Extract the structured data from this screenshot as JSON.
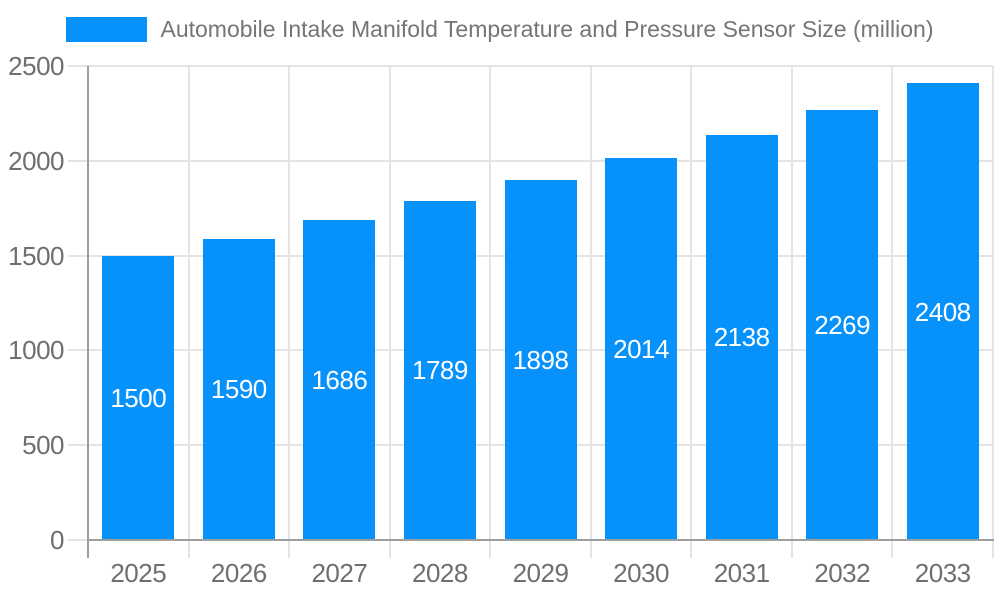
{
  "chart_data": {
    "type": "bar",
    "title": "Automobile Intake Manifold Temperature and Pressure Sensor Size (million)",
    "legend_position": "top",
    "categories": [
      "2025",
      "2026",
      "2027",
      "2028",
      "2029",
      "2030",
      "2031",
      "2032",
      "2033"
    ],
    "values": [
      1500,
      1590,
      1686,
      1789,
      1898,
      2014,
      2138,
      2269,
      2408
    ],
    "xlabel": "",
    "ylabel": "",
    "ylim": [
      0,
      2500
    ],
    "ytick_interval": 500,
    "ytick_labels": [
      "0",
      "500",
      "1000",
      "1500",
      "2000",
      "2500"
    ],
    "grid": true,
    "value_labels_position": "center-of-bar",
    "colors": {
      "bar": "#0691fb",
      "grid_line": "#e4e4e4",
      "axis_line": "#9e9e9e",
      "axis_text": "#6f6f6f",
      "title_text": "#757575",
      "value_text": "#ffffff",
      "background": "#ffffff"
    }
  }
}
